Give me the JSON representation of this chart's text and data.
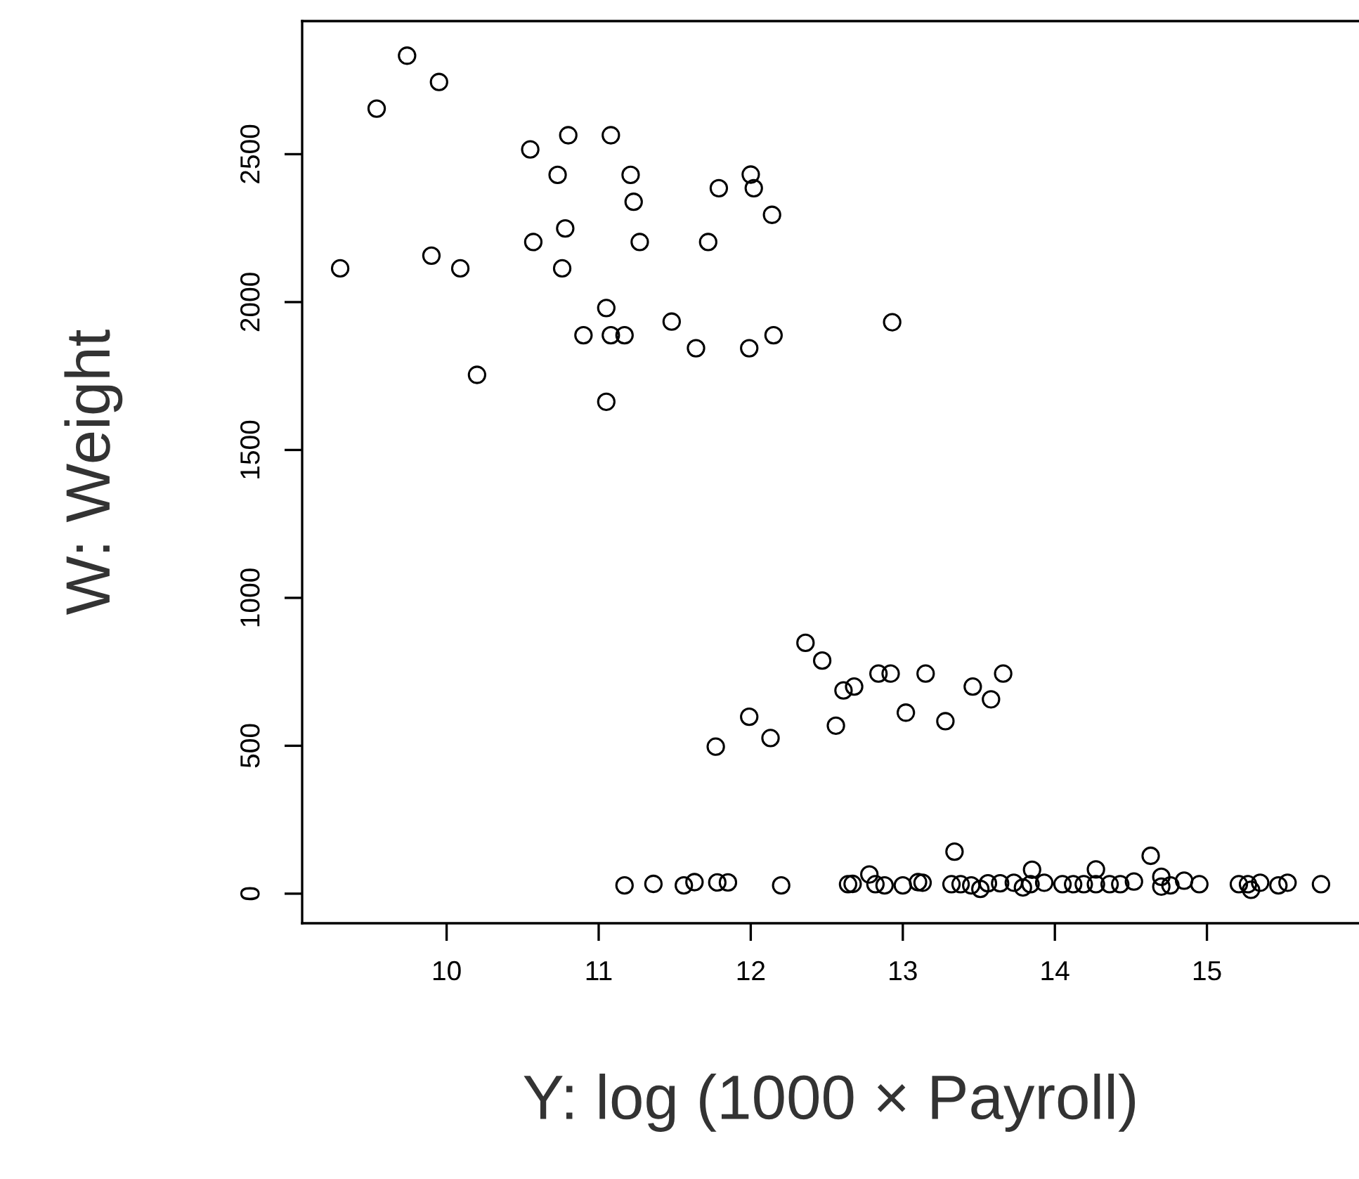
{
  "chart_data": {
    "type": "scatter",
    "xlabel": "Y: log (1000 × Payroll)",
    "ylabel": "W: Weight",
    "xlim": [
      9.05,
      16.0
    ],
    "xticks": [
      10,
      11,
      12,
      13,
      14,
      15
    ],
    "ylim": [
      -100,
      2950
    ],
    "yticks": [
      0,
      500,
      1000,
      1500,
      2000,
      2500
    ],
    "marker": "circle",
    "series": [
      {
        "color": "#000000",
        "x": [
          9.74,
          9.95,
          9.54,
          10.8,
          11.08,
          10.55,
          10.73,
          11.21,
          11.23,
          11.79,
          12.0,
          12.02,
          12.14,
          10.78,
          10.57,
          11.27,
          11.72,
          10.76,
          9.3,
          9.9,
          10.09,
          11.05,
          10.9,
          11.08,
          11.17,
          11.48,
          11.64,
          11.99,
          12.15,
          10.2,
          11.05,
          12.93,
          12.36,
          12.47,
          12.61,
          12.68,
          12.84,
          12.92,
          13.15,
          13.66,
          13.46,
          13.58,
          13.02,
          13.28,
          12.56,
          11.99,
          12.13,
          11.77,
          11.17,
          11.36,
          11.56,
          11.63,
          11.78,
          11.85,
          12.2,
          12.64,
          12.67,
          12.78,
          12.82,
          12.88,
          13.0,
          13.1,
          13.13,
          13.34,
          13.32,
          13.38,
          13.45,
          13.51,
          13.56,
          13.64,
          13.73,
          13.79,
          13.85,
          13.84,
          13.93,
          14.05,
          14.12,
          14.19,
          14.27,
          14.27,
          14.36,
          14.43,
          14.52,
          14.63,
          14.7,
          14.7,
          14.76,
          14.85,
          14.95,
          15.21,
          15.27,
          15.29,
          15.35,
          15.47,
          15.53,
          15.75
        ],
        "values": [
          2833,
          2744,
          2654,
          2564,
          2564,
          2516,
          2430,
          2430,
          2339,
          2385,
          2431,
          2385,
          2295,
          2249,
          2203,
          2203,
          2203,
          2114,
          2114,
          2157,
          2114,
          1980,
          1888,
          1888,
          1888,
          1934,
          1844,
          1844,
          1888,
          1754,
          1663,
          1932,
          848,
          788,
          687,
          700,
          744,
          744,
          744,
          744,
          700,
          657,
          612,
          583,
          568,
          598,
          526,
          497,
          28,
          33,
          28,
          39,
          38,
          38,
          28,
          32,
          33,
          65,
          32,
          28,
          28,
          39,
          37,
          142,
          32,
          32,
          28,
          16,
          35,
          35,
          37,
          21,
          81,
          32,
          37,
          32,
          32,
          32,
          82,
          32,
          32,
          32,
          41,
          128,
          57,
          24,
          28,
          44,
          32,
          32,
          32,
          13,
          37,
          28,
          37,
          32
        ]
      }
    ]
  }
}
